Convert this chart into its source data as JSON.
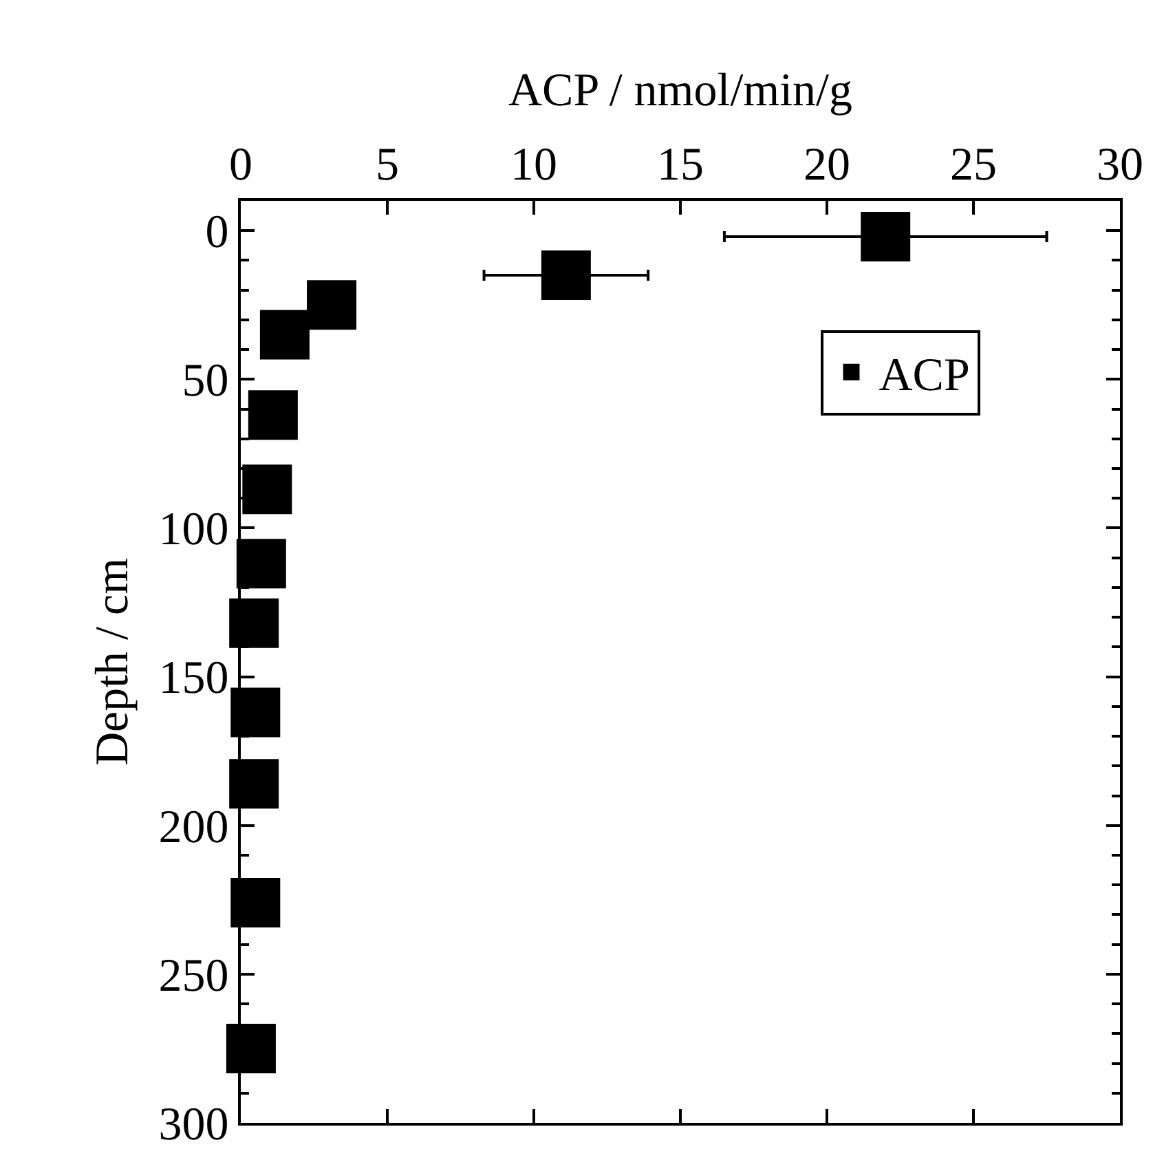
{
  "chart_data": {
    "type": "scatter",
    "xlabel": "ACP / nmol/min/g",
    "ylabel": "Depth / cm",
    "series": [
      {
        "name": "ACP",
        "color": "#000000",
        "x": [
          22,
          11.1,
          3.1,
          1.5,
          1.1,
          0.9,
          0.7,
          0.45,
          0.5,
          0.45,
          0.5,
          0.35
        ],
        "values": [
          2,
          15,
          25,
          35,
          62,
          87,
          112,
          132,
          162,
          186,
          226,
          275
        ],
        "xerrors": [
          [
            16.5,
            27.5
          ],
          [
            8.3,
            13.9
          ],
          null,
          null,
          null,
          null,
          null,
          null,
          null,
          null,
          null,
          null
        ]
      }
    ],
    "xlim": [
      0,
      30
    ],
    "xticks": [
      0,
      5,
      10,
      15,
      20,
      25,
      30
    ],
    "ylim": [
      300,
      -10
    ],
    "yticks": [
      0,
      50,
      100,
      150,
      200,
      250,
      300
    ],
    "marker": "square",
    "grid": false,
    "legend": "top right"
  }
}
